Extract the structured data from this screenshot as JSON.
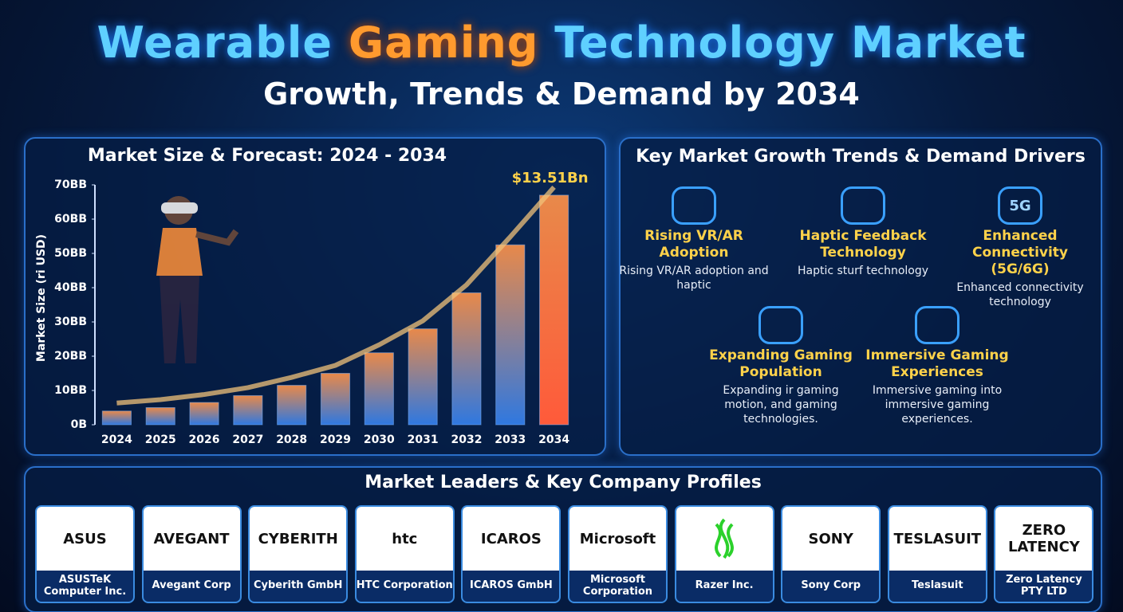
{
  "header": {
    "title_parts": [
      "Wearable",
      "Gaming",
      "Technology Market"
    ],
    "subtitle": "Growth, Trends & Demand by 2034"
  },
  "chart_data": {
    "type": "bar",
    "title": "Market Size & Forecast: 2024 - 2034",
    "y_label": "Market Size (ri USD)",
    "categories": [
      "2024",
      "2025",
      "2026",
      "2027",
      "2028",
      "2029",
      "2030",
      "2031",
      "2032",
      "2033",
      "2034"
    ],
    "values": [
      4,
      5,
      6.5,
      8.5,
      11.5,
      15,
      21,
      28,
      38.5,
      52.5,
      67
    ],
    "color": "#2f78e0",
    "top_color": "#e8894a",
    "highlight_color": "#ff5a3a",
    "annotation": "$13.51Bn",
    "ylim": [
      0,
      70
    ],
    "yticks": [
      {
        "value": 0,
        "label": "0B"
      },
      {
        "value": 10,
        "label": "10BB"
      },
      {
        "value": 20,
        "label": "20BB"
      },
      {
        "value": 30,
        "label": "30BB"
      },
      {
        "value": 40,
        "label": "40BB"
      },
      {
        "value": 50,
        "label": "50BB"
      },
      {
        "value": 60,
        "label": "60BB"
      },
      {
        "value": 70,
        "label": "70BB"
      }
    ]
  },
  "trends": {
    "title": "Key Market Growth Trends & Demand Drivers",
    "items": [
      {
        "title": "Rising VR/AR Adoption",
        "text": "Rising VR/AR adoption and haptic"
      },
      {
        "title": "Haptic Feedback Technology",
        "text": "Haptic sturf technology"
      },
      {
        "title": "Enhanced Connectivity (5G/6G)",
        "icon": "5G",
        "text": "Enhanced connectivity technology"
      },
      {
        "title": "Expanding Gaming Population",
        "text": "Expanding ir gaming motion, and gaming technologies."
      },
      {
        "title": "Immersive Gaming Experiences",
        "text": "Immersive gaming into immersive gaming experiences."
      }
    ]
  },
  "companies": {
    "title": "Market Leaders & Key Company Profiles",
    "items": [
      {
        "logo": "ASUS",
        "name": "ASUSTeK Computer Inc."
      },
      {
        "logo": "AVEGANT",
        "name": "Avegant Corp"
      },
      {
        "logo": "CYBERITH",
        "name": "Cyberith GmbH"
      },
      {
        "logo": "htc",
        "name": "HTC Corporation"
      },
      {
        "logo": "ICAROS",
        "name": "ICAROS GmbH"
      },
      {
        "logo": "Microsoft",
        "name": "Microsoft Corporation"
      },
      {
        "name": "Razer Inc."
      },
      {
        "logo": "SONY",
        "name": "Sony Corp"
      },
      {
        "logo": "TESLASUIT",
        "name": "Teslasuit"
      },
      {
        "logo": "ZERO LATENCY",
        "name": "Zero Latency PTY LTD"
      }
    ]
  }
}
